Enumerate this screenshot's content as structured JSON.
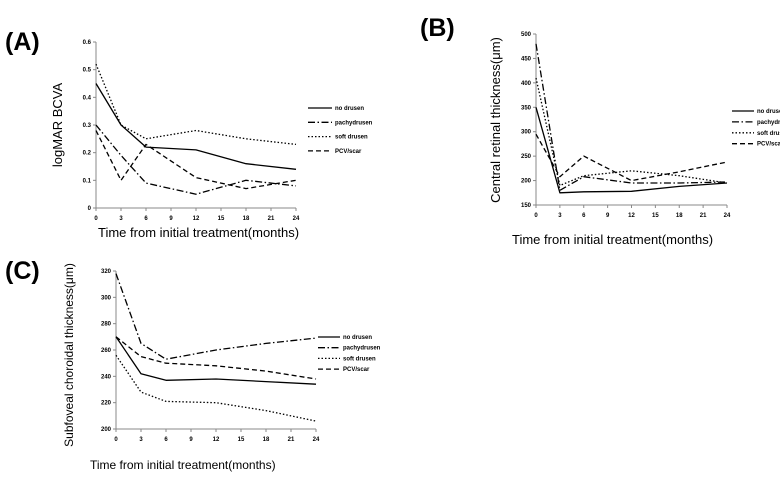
{
  "chart_data": [
    {
      "panel_label": "(A)",
      "type": "line",
      "xlabel": "Time from initial treatment(months)",
      "ylabel": "logMAR BCVA",
      "xlim": [
        0,
        24
      ],
      "ylim": [
        0,
        0.6
      ],
      "x_ticks": [
        0,
        3,
        6,
        9,
        12,
        15,
        18,
        21,
        24
      ],
      "y_ticks": [
        0,
        0.1,
        0.2,
        0.3,
        0.4,
        0.5,
        0.6
      ],
      "y_tick_labels": [
        "0",
        "0.1",
        "0.2",
        "0.3",
        "0.4",
        "0.5",
        "0.6"
      ],
      "legend_position": "right",
      "series": [
        {
          "name": "no drusen",
          "style": "solid",
          "x": [
            0,
            3,
            6,
            12,
            18,
            24
          ],
          "values": [
            0.45,
            0.3,
            0.22,
            0.21,
            0.16,
            0.14
          ]
        },
        {
          "name": "pachydrusen",
          "style": "dashdot",
          "x": [
            0,
            3,
            6,
            12,
            18,
            24
          ],
          "values": [
            0.3,
            0.19,
            0.09,
            0.05,
            0.1,
            0.08
          ]
        },
        {
          "name": "soft drusen",
          "style": "dotted",
          "x": [
            0,
            3,
            6,
            12,
            18,
            24
          ],
          "values": [
            0.52,
            0.3,
            0.25,
            0.28,
            0.25,
            0.23
          ]
        },
        {
          "name": "PCV/scar",
          "style": "dashed",
          "x": [
            0,
            3,
            6,
            12,
            18,
            24
          ],
          "values": [
            0.28,
            0.1,
            0.23,
            0.11,
            0.07,
            0.1
          ]
        }
      ]
    },
    {
      "panel_label": "(B)",
      "type": "line",
      "xlabel": "Time from initial treatment(months)",
      "ylabel": "Central retinal thickness(μm)",
      "xlim": [
        0,
        24
      ],
      "ylim": [
        150,
        500
      ],
      "x_ticks": [
        0,
        3,
        6,
        9,
        12,
        15,
        18,
        21,
        24
      ],
      "y_ticks": [
        150,
        200,
        250,
        300,
        350,
        400,
        450,
        500
      ],
      "y_tick_labels": [
        "150",
        "200",
        "250",
        "300",
        "350",
        "400",
        "450",
        "500"
      ],
      "legend_position": "right",
      "series": [
        {
          "name": "no drusen",
          "style": "solid",
          "x": [
            0,
            3,
            6,
            12,
            18,
            24
          ],
          "values": [
            350,
            175,
            177,
            178,
            188,
            195
          ]
        },
        {
          "name": "pachydrusen",
          "style": "dashdot",
          "x": [
            0,
            3,
            6,
            12,
            18,
            24
          ],
          "values": [
            480,
            180,
            208,
            195,
            195,
            197
          ]
        },
        {
          "name": "soft drusen",
          "style": "dotted",
          "x": [
            0,
            3,
            6,
            12,
            18,
            24
          ],
          "values": [
            410,
            190,
            210,
            220,
            210,
            195
          ]
        },
        {
          "name": "PCV/scar",
          "style": "dashed",
          "x": [
            0,
            3,
            6,
            12,
            18,
            24
          ],
          "values": [
            295,
            208,
            250,
            200,
            218,
            238
          ]
        }
      ]
    },
    {
      "panel_label": "(C)",
      "type": "line",
      "xlabel": "Time from initial treatment(months)",
      "ylabel": "Subfoveal choroidal thickness(μm)",
      "xlim": [
        0,
        24
      ],
      "ylim": [
        200,
        320
      ],
      "x_ticks": [
        0,
        3,
        6,
        9,
        12,
        15,
        18,
        21,
        24
      ],
      "y_ticks": [
        200,
        220,
        240,
        260,
        280,
        300,
        320
      ],
      "y_tick_labels": [
        "200",
        "220",
        "240",
        "260",
        "280",
        "300",
        "320"
      ],
      "legend_position": "right",
      "series": [
        {
          "name": "no drusen",
          "style": "solid",
          "x": [
            0,
            3,
            6,
            12,
            18,
            24
          ],
          "values": [
            270,
            242,
            237,
            238,
            236,
            234
          ]
        },
        {
          "name": "pachydrusen",
          "style": "dashdot",
          "x": [
            0,
            3,
            6,
            12,
            18,
            24
          ],
          "values": [
            318,
            265,
            253,
            260,
            265,
            269
          ]
        },
        {
          "name": "soft drusen",
          "style": "dotted",
          "x": [
            0,
            3,
            6,
            12,
            18,
            24
          ],
          "values": [
            256,
            228,
            221,
            220,
            214,
            206
          ]
        },
        {
          "name": "PCV/scar",
          "style": "dashed",
          "x": [
            0,
            3,
            6,
            12,
            18,
            24
          ],
          "values": [
            270,
            255,
            250,
            248,
            244,
            238
          ]
        }
      ]
    }
  ]
}
